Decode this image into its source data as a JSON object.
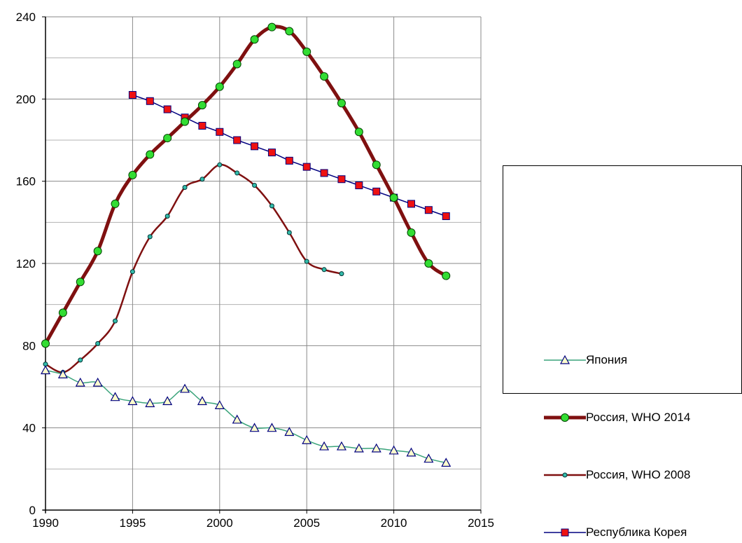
{
  "chart_data": {
    "type": "line",
    "title": "",
    "xlabel": "",
    "ylabel": "",
    "xlim": [
      1990,
      2015
    ],
    "ylim": [
      0,
      240
    ],
    "xticks": [
      1990,
      1995,
      2000,
      2005,
      2010,
      2015
    ],
    "yticks": [
      0,
      40,
      80,
      120,
      160,
      200,
      240
    ],
    "grid": true,
    "legend_position": "right",
    "series": [
      {
        "name": "Япония",
        "color": "#3aa37a",
        "marker": "triangle",
        "marker_fill": "#ffffcc",
        "marker_stroke": "#000080",
        "line_width": 1.5,
        "x": [
          1990,
          1991,
          1992,
          1993,
          1994,
          1995,
          1996,
          1997,
          1998,
          1999,
          2000,
          2001,
          2002,
          2003,
          2004,
          2005,
          2006,
          2007,
          2008,
          2009,
          2010,
          2011,
          2012,
          2013
        ],
        "y": [
          68,
          66,
          62,
          62,
          55,
          53,
          52,
          53,
          59,
          53,
          51,
          44,
          40,
          40,
          38,
          34,
          31,
          31,
          30,
          30,
          29,
          28,
          25,
          23
        ]
      },
      {
        "name": "Россия, WHO 2014",
        "color": "#7f1010",
        "marker": "circle",
        "marker_fill": "#33dd33",
        "marker_stroke": "#004400",
        "line_width": 5,
        "x": [
          1990,
          1991,
          1992,
          1993,
          1994,
          1995,
          1996,
          1997,
          1998,
          1999,
          2000,
          2001,
          2002,
          2003,
          2004,
          2005,
          2006,
          2007,
          2008,
          2009,
          2010,
          2011,
          2012,
          2013
        ],
        "y": [
          81,
          96,
          111,
          126,
          149,
          163,
          173,
          181,
          189,
          197,
          206,
          217,
          229,
          235,
          233,
          223,
          211,
          198,
          184,
          168,
          152,
          135,
          120,
          114
        ]
      },
      {
        "name": "Россия, WHO 2008",
        "color": "#7f1010",
        "marker": "small-circle",
        "marker_fill": "#33bbaa",
        "marker_stroke": "#003333",
        "line_width": 2.5,
        "x": [
          1990,
          1991,
          1992,
          1993,
          1994,
          1995,
          1996,
          1997,
          1998,
          1999,
          2000,
          2001,
          2002,
          2003,
          2004,
          2005,
          2006,
          2007
        ],
        "y": [
          71,
          67,
          73,
          81,
          92,
          116,
          133,
          143,
          157,
          161,
          168,
          164,
          158,
          148,
          135,
          121,
          117,
          115
        ]
      },
      {
        "name": "Республика Корея",
        "color": "#000080",
        "marker": "square",
        "marker_fill": "#ee1111",
        "marker_stroke": "#000080",
        "line_width": 1.5,
        "x": [
          1995,
          1996,
          1997,
          1998,
          1999,
          2000,
          2001,
          2002,
          2003,
          2004,
          2005,
          2006,
          2007,
          2008,
          2009,
          2010,
          2011,
          2012,
          2013
        ],
        "y": [
          202,
          199,
          195,
          191,
          187,
          184,
          180,
          177,
          174,
          170,
          167,
          164,
          161,
          158,
          155,
          152,
          149,
          146,
          143
        ]
      }
    ]
  }
}
